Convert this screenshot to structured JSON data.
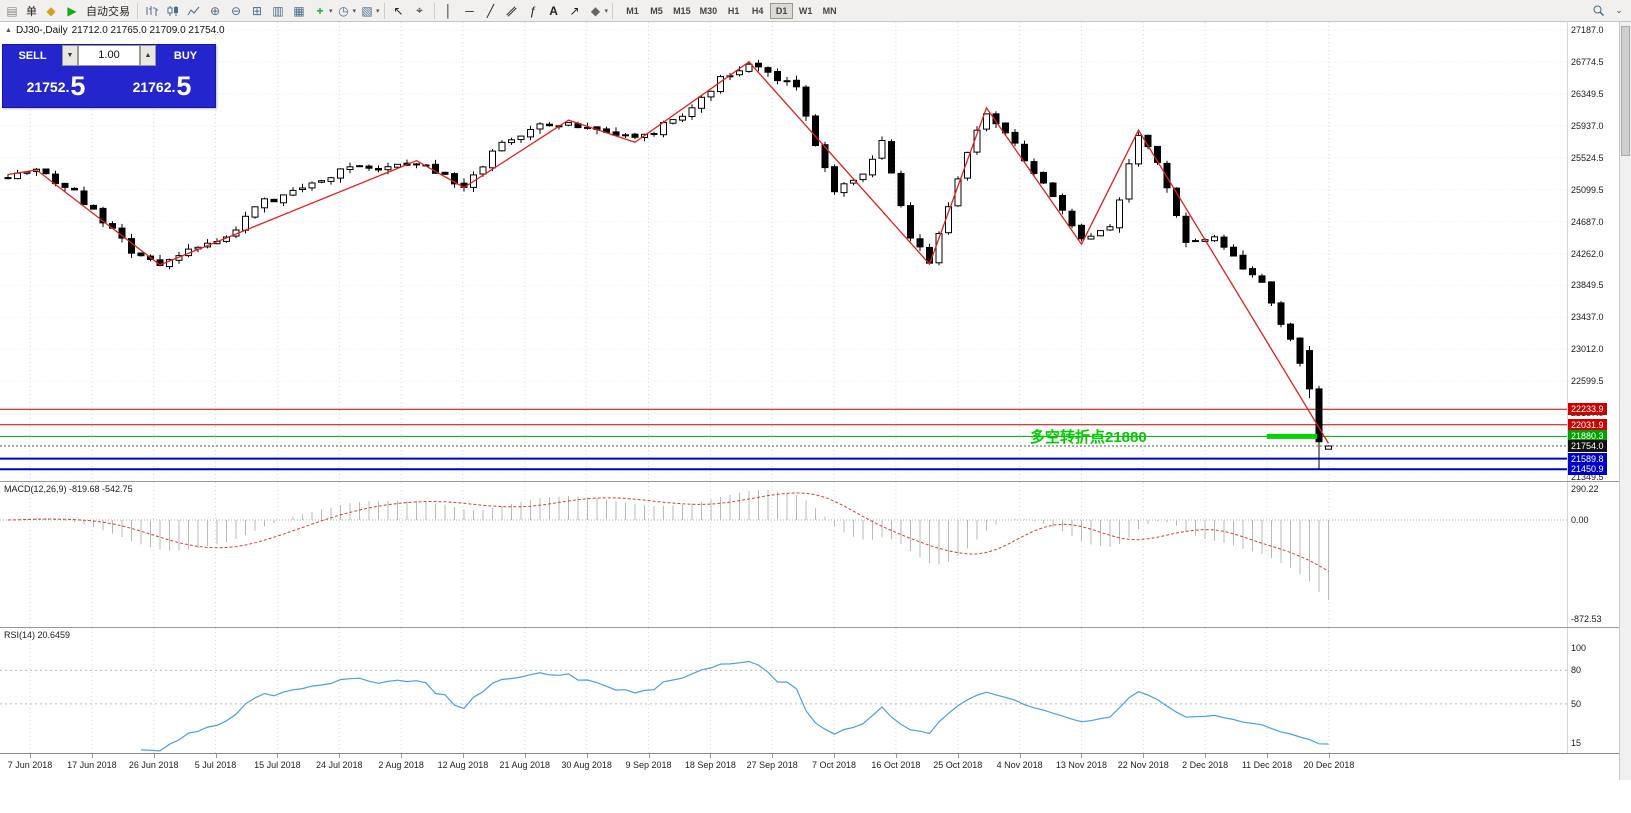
{
  "colors": {
    "accent_blue": "#2525cd",
    "line_red": "#cc0000",
    "line_green": "#00a000",
    "line_blue": "#0000cc",
    "zigzag_red": "#e02020",
    "rsi_blue": "#4aa0e0",
    "macd_signal_red": "#d04040",
    "highlight_green": "#00d200"
  },
  "toolbar": {
    "order_label": "单",
    "autotrade_label": "自动交易",
    "timeframes": [
      "M1",
      "M5",
      "M15",
      "M30",
      "H1",
      "H4",
      "D1",
      "W1",
      "MN"
    ],
    "active_timeframe": "D1",
    "icons": [
      "order-icon",
      "diamond-icon",
      "autotrade-play-icon",
      "bar-chart-icon",
      "candlestick-chart-icon",
      "line-chart-icon",
      "zoom-in-icon",
      "zoom-out-icon",
      "tile-windows-icon",
      "arrange-windows-icon",
      "indicators-plus-icon",
      "periods-clock-icon",
      "templates-icon",
      "cursor-icon",
      "crosshair-icon",
      "vertical-line-icon",
      "horizontal-line-icon",
      "trendline-icon",
      "channel-icon",
      "fibonacci-icon",
      "text-tool-icon",
      "arrow-tool-icon",
      "shapes-tool-icon",
      "search-icon",
      "chevron-down-icon"
    ]
  },
  "chart": {
    "title": "DJ30-,Daily",
    "ohlc": "21712.0 21765.0 21709.0 21754.0",
    "annotation": "多空转折点21880",
    "axis_labels": [
      "27187.0",
      "26774.5",
      "26349.5",
      "25937.0",
      "25524.5",
      "25099.5",
      "24687.0",
      "24262.0",
      "23849.5",
      "23437.0",
      "23012.0",
      "22599.5",
      "22187.0",
      "21762.0",
      "21349.5"
    ],
    "axis_top_price": 27187.0,
    "axis_bottom_price": 21349.5,
    "hlines": [
      {
        "price": 22233.9,
        "label": "22233.9",
        "color": "#cc0000",
        "label_bg": "#cc0000",
        "width": 1,
        "dash": ""
      },
      {
        "price": 22031.9,
        "label": "22031.9",
        "color": "#cc0000",
        "label_bg": "#cc0000",
        "width": 1,
        "dash": ""
      },
      {
        "price": 21880.3,
        "label": "21880.3",
        "color": "#00a000",
        "label_bg": "#00a000",
        "width": 1,
        "dash": ""
      },
      {
        "price": 21754.0,
        "label": "21754.0",
        "color": "#555555",
        "label_bg": "#111111",
        "width": 1,
        "dash": "2,2"
      },
      {
        "price": 21589.8,
        "label": "21589.8",
        "color": "#0000cc",
        "label_bg": "#0000cc",
        "width": 2,
        "dash": ""
      },
      {
        "price": 21450.9,
        "label": "21450.9",
        "color": "#0000cc",
        "label_bg": "#0000cc",
        "width": 2,
        "dash": ""
      }
    ],
    "dates": [
      "7 Jun 2018",
      "17 Jun 2018",
      "26 Jun 2018",
      "5 Jul 2018",
      "15 Jul 2018",
      "24 Jul 2018",
      "2 Aug 2018",
      "12 Aug 2018",
      "21 Aug 2018",
      "30 Aug 2018",
      "9 Sep 2018",
      "18 Sep 2018",
      "27 Sep 2018",
      "7 Oct 2018",
      "16 Oct 2018",
      "25 Oct 2018",
      "4 Nov 2018",
      "13 Nov 2018",
      "22 Nov 2018",
      "2 Dec 2018",
      "11 Dec 2018",
      "20 Dec 2018"
    ]
  },
  "trade_panel": {
    "sell_label": "SELL",
    "buy_label": "BUY",
    "amount": "1.00",
    "sell_price_main": "21752.",
    "sell_price_big": "5",
    "buy_price_main": "21762.",
    "buy_price_big": "5"
  },
  "macd": {
    "label": "MACD(12,26,9) -819.68 -542.75",
    "axis": [
      "290.22",
      "0.00",
      "-872.53"
    ]
  },
  "rsi": {
    "label": "RSI(14) 20.6459",
    "axis": [
      100,
      80,
      50,
      15
    ],
    "levels": [
      80,
      50
    ]
  },
  "chart_data": {
    "type": "candlestick",
    "symbol": "DJ30-",
    "timeframe": "Daily",
    "bid": 21752.5,
    "ask": 21762.5,
    "last_ohlc": {
      "open": 21712.0,
      "high": 21765.0,
      "low": 21709.0,
      "close": 21754.0
    },
    "num_candles": 140,
    "close_anchors": [
      [
        0,
        25280
      ],
      [
        3,
        25340
      ],
      [
        7,
        25060
      ],
      [
        10,
        24680
      ],
      [
        13,
        24300
      ],
      [
        16,
        24150
      ],
      [
        19,
        24330
      ],
      [
        23,
        24480
      ],
      [
        26,
        24900
      ],
      [
        30,
        25060
      ],
      [
        33,
        25240
      ],
      [
        36,
        25400
      ],
      [
        39,
        25330
      ],
      [
        43,
        25450
      ],
      [
        46,
        25260
      ],
      [
        48,
        25150
      ],
      [
        52,
        25720
      ],
      [
        56,
        25940
      ],
      [
        59,
        25990
      ],
      [
        62,
        25880
      ],
      [
        66,
        25760
      ],
      [
        69,
        25940
      ],
      [
        72,
        26170
      ],
      [
        75,
        26560
      ],
      [
        78,
        26740
      ],
      [
        80,
        26620
      ],
      [
        83,
        26470
      ],
      [
        85,
        25680
      ],
      [
        87,
        25080
      ],
      [
        90,
        25350
      ],
      [
        92,
        25700
      ],
      [
        95,
        24500
      ],
      [
        97,
        24160
      ],
      [
        100,
        25270
      ],
      [
        103,
        26120
      ],
      [
        105,
        25880
      ],
      [
        108,
        25320
      ],
      [
        110,
        25010
      ],
      [
        113,
        24420
      ],
      [
        116,
        24580
      ],
      [
        119,
        25830
      ],
      [
        121,
        25480
      ],
      [
        124,
        24380
      ],
      [
        127,
        24520
      ],
      [
        130,
        24080
      ],
      [
        132,
        23850
      ],
      [
        134,
        23380
      ],
      [
        136,
        22850
      ],
      [
        137,
        22520
      ],
      [
        138,
        21800
      ],
      [
        139,
        21754
      ]
    ],
    "forced_candles": {
      "137": [
        23000,
        23060,
        22380,
        22500
      ],
      "138": [
        22500,
        22540,
        21455,
        21810
      ],
      "139": [
        21712,
        21765,
        21709,
        21754
      ]
    },
    "zigzag": [
      [
        0,
        25300
      ],
      [
        3,
        25360
      ],
      [
        16,
        24120
      ],
      [
        43,
        25480
      ],
      [
        48,
        25130
      ],
      [
        59,
        26010
      ],
      [
        66,
        25720
      ],
      [
        78,
        26770
      ],
      [
        97,
        24130
      ],
      [
        103,
        26170
      ],
      [
        113,
        24390
      ],
      [
        119,
        25880
      ],
      [
        139,
        21790
      ]
    ],
    "highlight": {
      "price": 21880.3,
      "from_candle": 132.5,
      "to_candle": 137.8,
      "color": "#00d200"
    },
    "hline_prices": [
      22233.9,
      22031.9,
      21880.3,
      21754.0,
      21589.8,
      21450.9
    ],
    "macd_display": {
      "main": -819.68,
      "signal": -542.75
    },
    "rsi_display": 20.6459
  }
}
